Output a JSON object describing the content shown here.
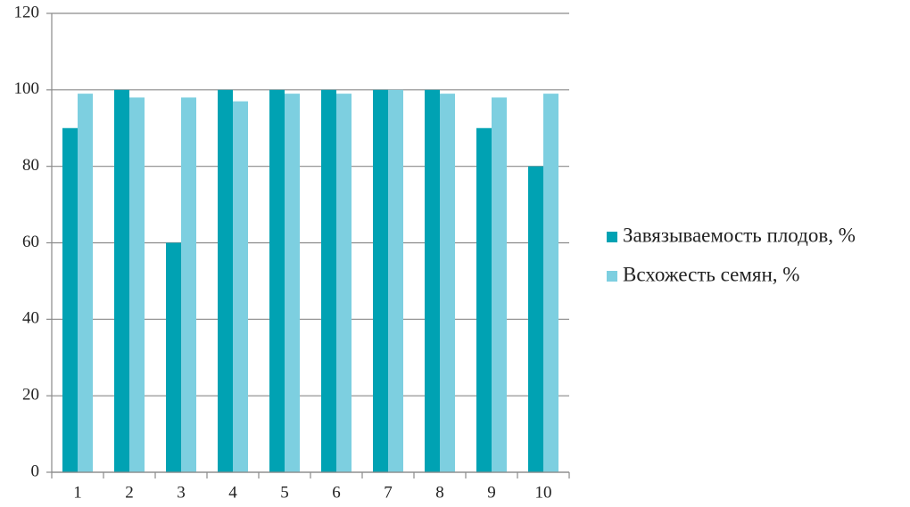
{
  "chart_data": {
    "type": "bar",
    "categories": [
      "1",
      "2",
      "3",
      "4",
      "5",
      "6",
      "7",
      "8",
      "9",
      "10"
    ],
    "series": [
      {
        "name": "Завязываемость плодов, %",
        "color": "#00a2b3",
        "values": [
          90,
          100,
          60,
          100,
          100,
          100,
          100,
          100,
          90,
          80
        ]
      },
      {
        "name": "Всхожесть семян, %",
        "color": "#7dcfe0",
        "values": [
          99,
          98,
          98,
          97,
          99,
          99,
          100,
          99,
          98,
          99
        ]
      }
    ],
    "ylim": [
      0,
      120
    ],
    "yticks": [
      0,
      20,
      40,
      60,
      80,
      100,
      120
    ],
    "grid": true,
    "legend": "right"
  }
}
